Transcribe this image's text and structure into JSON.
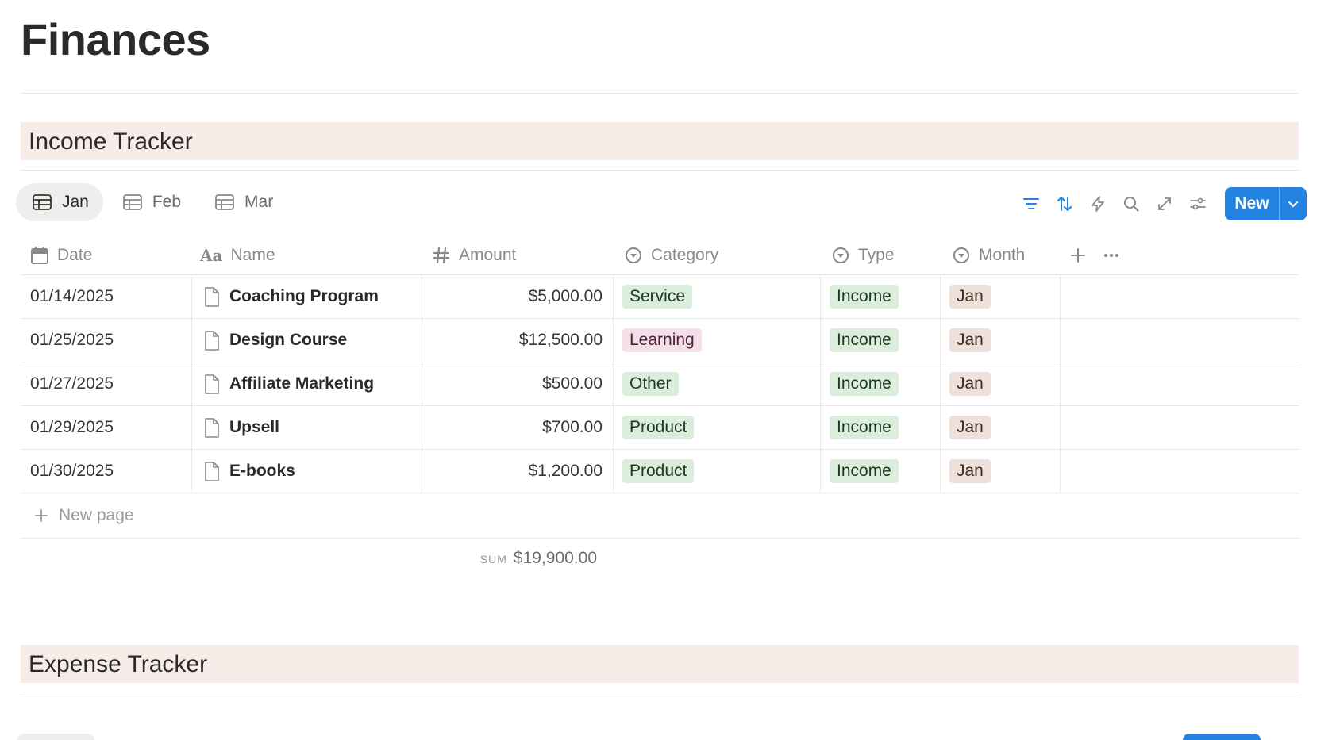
{
  "page": {
    "title": "Finances"
  },
  "income": {
    "title": "Income Tracker",
    "views": [
      {
        "label": "Jan",
        "active": true
      },
      {
        "label": "Feb",
        "active": false
      },
      {
        "label": "Mar",
        "active": false
      }
    ],
    "toolbar": {
      "icons": [
        "filter-icon",
        "sort-icon",
        "automation-icon",
        "search-icon",
        "expand-icon",
        "settings-icon"
      ],
      "new_label": "New"
    },
    "columns": {
      "date": "Date",
      "name": "Name",
      "amount": "Amount",
      "category": "Category",
      "type": "Type",
      "month": "Month"
    },
    "rows": [
      {
        "date": "01/14/2025",
        "name": "Coaching Program",
        "amount": "$5,000.00",
        "category": "Service",
        "category_color": "green",
        "type": "Income",
        "month": "Jan"
      },
      {
        "date": "01/25/2025",
        "name": "Design Course",
        "amount": "$12,500.00",
        "category": "Learning",
        "category_color": "pink",
        "type": "Income",
        "month": "Jan"
      },
      {
        "date": "01/27/2025",
        "name": "Affiliate Marketing",
        "amount": "$500.00",
        "category": "Other",
        "category_color": "green",
        "type": "Income",
        "month": "Jan"
      },
      {
        "date": "01/29/2025",
        "name": "Upsell",
        "amount": "$700.00",
        "category": "Product",
        "category_color": "green",
        "type": "Income",
        "month": "Jan"
      },
      {
        "date": "01/30/2025",
        "name": "E-books",
        "amount": "$1,200.00",
        "category": "Product",
        "category_color": "green",
        "type": "Income",
        "month": "Jan"
      }
    ],
    "new_page_label": "New page",
    "sum": {
      "label": "SUM",
      "value": "$19,900.00"
    }
  },
  "expense": {
    "title": "Expense Tracker"
  },
  "colors": {
    "accent": "#2383e2",
    "section_bg": "#f7ece8",
    "tag_green_bg": "#dbeddb",
    "tag_green_fg": "#1c3829",
    "tag_pink_bg": "#f5e0e9",
    "tag_pink_fg": "#4c2337",
    "tag_brown_bg": "#eee0da",
    "tag_brown_fg": "#442a1e"
  }
}
